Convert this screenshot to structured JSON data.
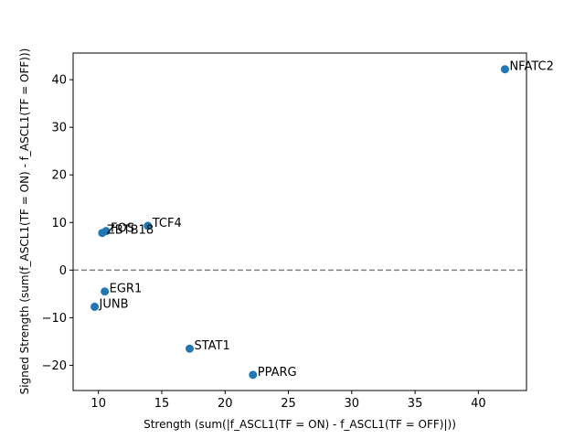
{
  "chart_data": {
    "type": "scatter",
    "title": "",
    "xlabel": "Strength (sum(|f_ASCL1(TF = ON) - f_ASCL1(TF = OFF)|))",
    "ylabel": "Signed Strength (sum(f_ASCL1(TF = ON) - f_ASCL1(TF = OFF)))",
    "xlim": [
      8.0,
      43.8
    ],
    "ylim": [
      -25.3,
      45.6
    ],
    "xticks": [
      10,
      15,
      20,
      25,
      30,
      35,
      40
    ],
    "yticks": [
      -20,
      -10,
      0,
      10,
      20,
      30,
      40
    ],
    "grid": false,
    "reference_line": {
      "y": 0,
      "style": "dashed",
      "color": "#808080"
    },
    "marker_color": "#1f77b4",
    "points": [
      {
        "label": "NFATC2",
        "x": 42.1,
        "y": 42.2
      },
      {
        "label": "TCF4",
        "x": 13.9,
        "y": 9.3
      },
      {
        "label": "FOS",
        "x": 10.6,
        "y": 8.2
      },
      {
        "label": "ZBTB18",
        "x": 10.3,
        "y": 7.8
      },
      {
        "label": "EGR1",
        "x": 10.5,
        "y": -4.5
      },
      {
        "label": "JUNB",
        "x": 9.7,
        "y": -7.7
      },
      {
        "label": "STAT1",
        "x": 17.2,
        "y": -16.5
      },
      {
        "label": "PPARG",
        "x": 22.2,
        "y": -22.0
      }
    ]
  }
}
